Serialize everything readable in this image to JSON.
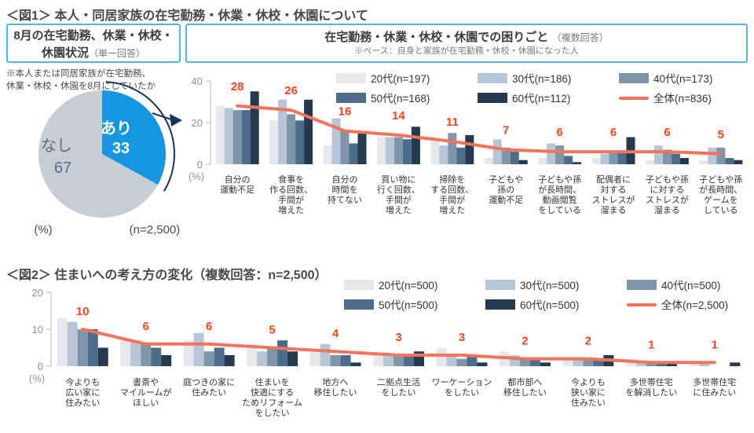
{
  "colors": {
    "accent_blue_border": "#4db4e8",
    "pie_yes": "#1496e1",
    "pie_no": "#c6cdd5",
    "pie_no_text": "#5d6e80",
    "arrow_navy": "#16355a",
    "total_line_red": "#f4735b",
    "value_label_red": "#f4471f",
    "bar_20s": "#e6e8eb",
    "bar_30s": "#b7c6d6",
    "bar_40s": "#7e95aa",
    "bar_50s": "#4d6c8b",
    "bar_60s": "#24384e"
  },
  "figure1": {
    "title": "＜図1＞ 本人・同居家族の在宅勤務・休業・休校・休園について",
    "left_box": {
      "heading": "8月の在宅勤務、休業・休校・休園状況",
      "answer_type": "（単一回答）"
    },
    "right_box": {
      "heading": "在宅勤務・休業・休校・休園での困りごと",
      "answer_type": "（複数回答）",
      "base_note": "※ベース：自身と家族が在宅勤務・休校・休園になった人"
    },
    "pie_note": "※本人または同居家族が在宅勤務、休業・休校・休園を8月にしていたか"
  },
  "figure2": {
    "title": "＜図2＞ 住まいへの考え方の変化（複数回答：n=2,500）"
  },
  "chart_data": [
    {
      "id": "pie-status",
      "type": "pie",
      "title": "8月の在宅勤務、休業・休校・休園状況",
      "slices": [
        {
          "label": "あり",
          "value": 33,
          "color": "#1496e1",
          "text_color": "#ffffff"
        },
        {
          "label": "なし",
          "value": 67,
          "color": "#c6cdd5",
          "text_color": "#5d6e80"
        }
      ],
      "unit_label": "(%)",
      "sample_label": "(n=2,500)"
    },
    {
      "id": "fig1-bars",
      "type": "bar",
      "title": "在宅勤務・休業・休校・休園での困りごと（複数回答）",
      "ylim": [
        0,
        40
      ],
      "yticks": [
        0,
        20,
        40
      ],
      "unit_label": "(%)",
      "value_label_color": "#f4471f",
      "legend_position": "top-right",
      "categories": [
        "自分の運動不足",
        "食事を作る回数、手間が増えた",
        "自分の時間を持てない",
        "買い物に行く回数、手間が増えた",
        "掃除をする回数、手間が増えた",
        "子どもや孫の運動不足",
        "子どもや孫が長時間、動画閲覧をしている",
        "配偶者に対するストレスが溜まる",
        "子どもや孫に対するストレスが溜まる",
        "子どもや孫が長時間、ゲームをしている"
      ],
      "category_lines": [
        [
          "自分の",
          "運動不足"
        ],
        [
          "食事を",
          "作る回数、",
          "手間が",
          "増えた"
        ],
        [
          "自分の",
          "時間を",
          "持てない"
        ],
        [
          "買い物に",
          "行く回数、",
          "手間が",
          "増えた"
        ],
        [
          "掃除を",
          "する回数、",
          "手間が",
          "増えた"
        ],
        [
          "子どもや",
          "孫の",
          "運動不足"
        ],
        [
          "子どもや孫",
          "が長時間、",
          "動画閲覧",
          "をしている"
        ],
        [
          "配偶者に",
          "対する",
          "ストレスが",
          "溜まる"
        ],
        [
          "子どもや孫",
          "に対する",
          "ストレスが",
          "溜まる"
        ],
        [
          "子どもや孫",
          "が長時間、",
          "ゲームを",
          "している"
        ]
      ],
      "series": [
        {
          "name": "20代(n=197)",
          "color": "#e6e8eb",
          "values": [
            28,
            21,
            9,
            13,
            12,
            3,
            3,
            3,
            2,
            2
          ]
        },
        {
          "name": "30代(n=186)",
          "color": "#b7c6d6",
          "values": [
            27,
            31,
            22,
            13,
            9,
            12,
            10,
            5,
            9,
            8
          ]
        },
        {
          "name": "40代(n=173)",
          "color": "#7e95aa",
          "values": [
            26,
            24,
            16,
            13,
            15,
            8,
            9,
            6,
            7,
            8
          ]
        },
        {
          "name": "50代(n=168)",
          "color": "#4d6c8b",
          "values": [
            26,
            21,
            10,
            12,
            8,
            6,
            4,
            6,
            5,
            3
          ]
        },
        {
          "name": "60代(n=112)",
          "color": "#24384e",
          "values": [
            35,
            31,
            16,
            18,
            14,
            2,
            1,
            13,
            3,
            2
          ]
        }
      ],
      "line": {
        "name": "全体(n=836)",
        "color": "#f4735b",
        "values": [
          28,
          26,
          16,
          14,
          11,
          7,
          6,
          6,
          6,
          5
        ]
      }
    },
    {
      "id": "fig2-bars",
      "type": "bar",
      "title": "住まいへの考え方の変化（複数回答：n=2,500）",
      "ylim": [
        0,
        20
      ],
      "yticks": [
        0,
        10,
        20
      ],
      "unit_label": "(%)",
      "value_label_color": "#f4471f",
      "legend_position": "top-right",
      "categories": [
        "今よりも広い家に住みたい",
        "書斎やマイルームがほしい",
        "庭つきの家に住みたい",
        "住まいを快適にするためリフォームをしたい",
        "地方へ移住したい",
        "二拠点生活をしたい",
        "ワーケーションをしたい",
        "都市部へ移住したい",
        "今よりも狭い家に住みたい",
        "多世帯住宅を解消したい",
        "多世帯住宅に住みたい"
      ],
      "category_lines": [
        [
          "今よりも",
          "広い家に",
          "住みたい"
        ],
        [
          "書斎や",
          "マイルームが",
          "ほしい"
        ],
        [
          "庭つきの家に",
          "住みたい"
        ],
        [
          "住まいを",
          "快適にする",
          "ためリフォーム",
          "をしたい"
        ],
        [
          "地方へ",
          "移住したい"
        ],
        [
          "二拠点生活",
          "をしたい"
        ],
        [
          "ワーケーション",
          "をしたい"
        ],
        [
          "都市部へ",
          "移住したい"
        ],
        [
          "今よりも",
          "狭い家に",
          "住みたい"
        ],
        [
          "多世帯住宅",
          "を解消したい"
        ],
        [
          "多世帯住宅",
          "に住みたい"
        ]
      ],
      "series": [
        {
          "name": "20代(n=500)",
          "color": "#e6e8eb",
          "values": [
            13,
            7,
            7,
            5,
            4,
            3,
            5,
            4,
            2,
            2,
            1
          ]
        },
        {
          "name": "30代(n=500)",
          "color": "#b7c6d6",
          "values": [
            12,
            7,
            9,
            4,
            6,
            3,
            3,
            3,
            2,
            1,
            1
          ]
        },
        {
          "name": "40代(n=500)",
          "color": "#7e95aa",
          "values": [
            10,
            6,
            4,
            5,
            3,
            3,
            2,
            2,
            2,
            1,
            0
          ]
        },
        {
          "name": "50代(n=500)",
          "color": "#4d6c8b",
          "values": [
            10,
            5,
            5,
            7,
            3,
            3,
            3,
            2,
            2,
            1,
            0
          ]
        },
        {
          "name": "60代(n=500)",
          "color": "#24384e",
          "values": [
            5,
            3,
            3,
            4,
            1,
            4,
            1,
            1,
            3,
            1,
            1
          ]
        }
      ],
      "line": {
        "name": "全体(n=2,500)",
        "color": "#f4735b",
        "values": [
          10,
          6,
          6,
          5,
          4,
          3,
          3,
          2,
          2,
          1,
          1
        ]
      }
    }
  ]
}
